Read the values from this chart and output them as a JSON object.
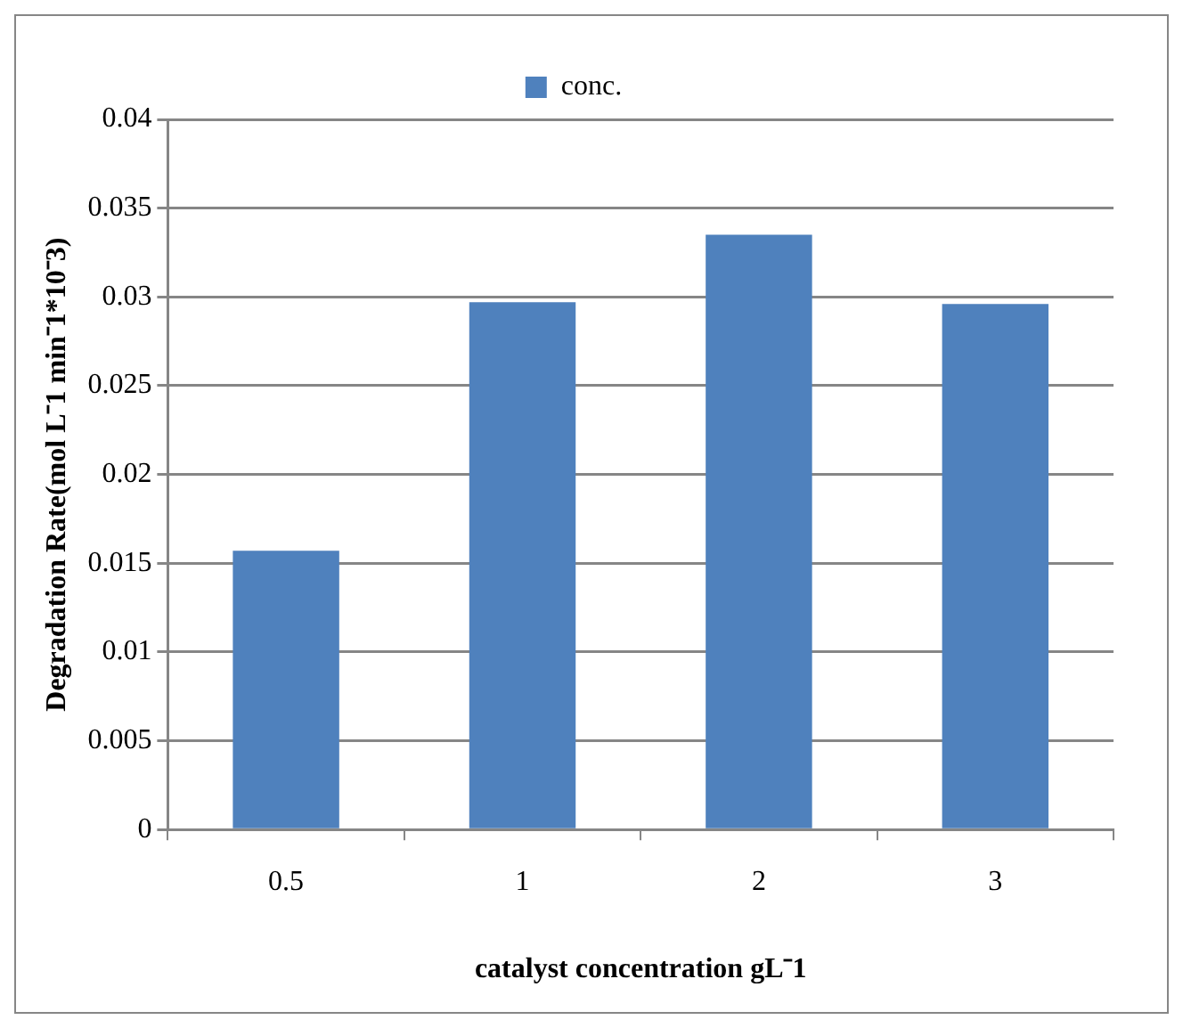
{
  "chart_data": {
    "type": "bar",
    "xlabel": "catalyst concentration gL⁻1",
    "ylabel": "Degradation Rate(mol L⁻1 min⁻1*10⁻3)",
    "categories": [
      "0.5",
      "1",
      "2",
      "3"
    ],
    "series": [
      {
        "name": "conc.",
        "color": "#4f81bd",
        "values": [
          0.0157,
          0.0297,
          0.0335,
          0.0296
        ]
      }
    ],
    "ylim": [
      0,
      0.04
    ],
    "yticks": [
      0,
      0.005,
      0.01,
      0.015,
      0.02,
      0.025,
      0.03,
      0.035,
      0.04
    ],
    "grid": "y",
    "legend": "top"
  }
}
